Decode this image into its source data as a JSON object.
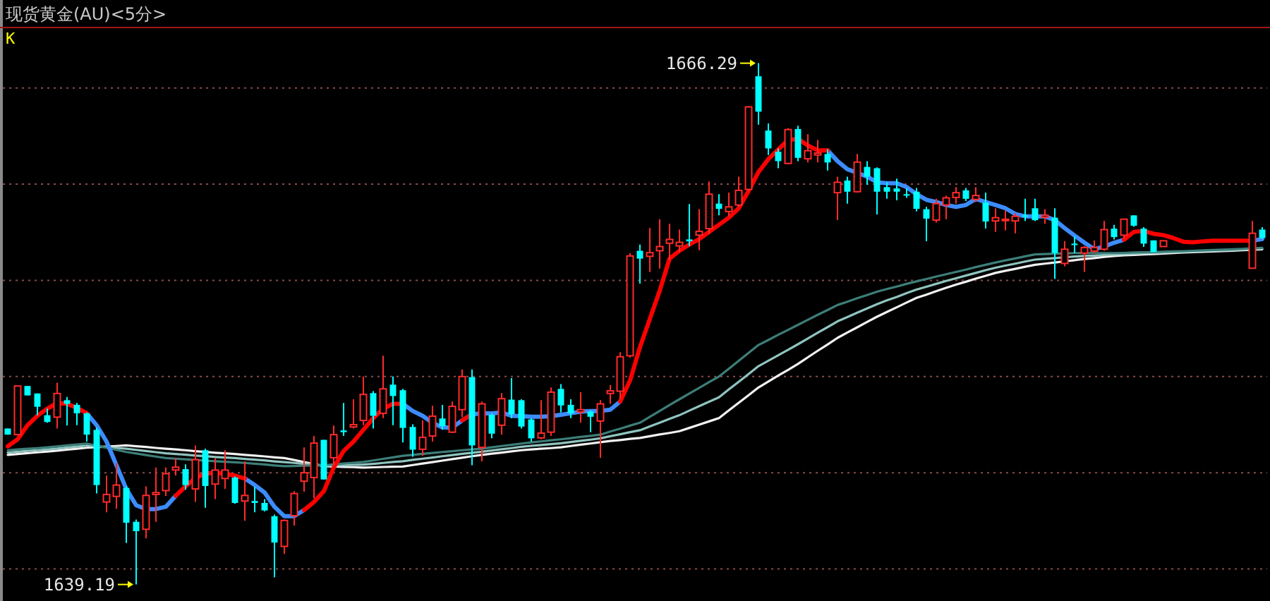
{
  "chart_data": {
    "type": "candlestick",
    "title": "现货黄金(AU)<5分>",
    "categories": [
      null,
      null,
      null,
      null,
      null,
      null,
      null,
      null,
      null,
      null,
      null,
      null,
      null,
      null,
      null,
      null,
      null,
      null,
      null,
      null,
      null,
      null,
      null,
      null,
      null,
      null,
      null,
      null,
      null,
      null,
      null,
      null,
      null,
      null,
      null,
      null,
      null,
      null,
      null,
      null,
      null,
      null,
      null,
      null,
      null,
      null,
      null,
      null,
      null,
      null,
      null,
      null,
      null,
      null,
      null,
      null,
      null,
      null,
      null,
      null,
      null,
      null,
      null,
      null,
      null,
      null,
      null,
      null,
      null,
      null,
      null,
      null,
      null,
      null,
      null,
      null,
      null,
      null,
      null,
      null,
      null,
      null,
      null,
      null,
      null,
      null,
      null,
      null,
      null,
      null,
      null,
      null,
      null,
      null,
      null,
      null,
      null,
      null,
      null,
      null,
      null,
      null,
      null,
      null,
      null,
      null,
      null,
      null,
      null,
      null,
      null,
      null,
      null,
      null,
      null,
      null,
      null,
      null,
      null,
      null,
      null,
      null,
      null,
      null,
      null,
      null,
      null,
      null
    ],
    "ohlc": [
      [
        1647.3,
        1647.3,
        1646.98,
        1646.98
      ],
      [
        1646.98,
        1649.51,
        1646.98,
        1649.51
      ],
      [
        1649.51,
        1649.51,
        1649.02,
        1649.02
      ],
      [
        1649.12,
        1649.12,
        1647.99,
        1648.43
      ],
      [
        1647.99,
        1648.33,
        1647.6,
        1647.64
      ],
      [
        1647.89,
        1649.68,
        1647.3,
        1649.12
      ],
      [
        1648.77,
        1648.94,
        1647.45,
        1648.58
      ],
      [
        1648.53,
        1648.63,
        1647.47,
        1648.09
      ],
      [
        1648.09,
        1648.13,
        1646.62,
        1646.98
      ],
      [
        1647.23,
        1647.35,
        1643.92,
        1644.36
      ],
      [
        1643.48,
        1644.85,
        1642.94,
        1643.87
      ],
      [
        1643.77,
        1645.51,
        1643.13,
        1644.36
      ],
      [
        1644.21,
        1644.29,
        1641.35,
        1642.4
      ],
      [
        1642.45,
        1642.57,
        1639.19,
        1641.96
      ],
      [
        1642.06,
        1644.29,
        1641.59,
        1643.82
      ],
      [
        1643.87,
        1645.27,
        1642.45,
        1643.97
      ],
      [
        1644.07,
        1645.27,
        1643.8,
        1644.95
      ],
      [
        1645.14,
        1645.76,
        1644.85,
        1645.29
      ],
      [
        1645.19,
        1645.44,
        1644.12,
        1644.36
      ],
      [
        1644.16,
        1646.42,
        1643.48,
        1645.68
      ],
      [
        1646.17,
        1646.25,
        1643.18,
        1644.31
      ],
      [
        1644.41,
        1645.76,
        1643.63,
        1645.14
      ],
      [
        1644.7,
        1646.17,
        1644.16,
        1645.14
      ],
      [
        1644.75,
        1644.8,
        1643.38,
        1643.43
      ],
      [
        1643.53,
        1645.59,
        1642.5,
        1643.82
      ],
      [
        1643.53,
        1644.26,
        1642.94,
        1643.43
      ],
      [
        1643.43,
        1643.63,
        1642.99,
        1643.04
      ],
      [
        1642.74,
        1642.82,
        1639.56,
        1641.37
      ],
      [
        1641.17,
        1642.57,
        1640.78,
        1642.52
      ],
      [
        1642.77,
        1644.04,
        1642.25,
        1643.92
      ],
      [
        1644.56,
        1646.32,
        1644.02,
        1645.0
      ],
      [
        1644.75,
        1646.91,
        1643.67,
        1646.54
      ],
      [
        1646.71,
        1646.71,
        1644.65,
        1644.65
      ],
      [
        1645.78,
        1647.45,
        1645.39,
        1646.98
      ],
      [
        1647.2,
        1648.63,
        1646.91,
        1647.11
      ],
      [
        1647.38,
        1648.82,
        1647.3,
        1647.5
      ],
      [
        1647.72,
        1650.0,
        1647.47,
        1649.07
      ],
      [
        1649.14,
        1649.24,
        1647.3,
        1647.96
      ],
      [
        1648.09,
        1651.08,
        1647.84,
        1649.36
      ],
      [
        1649.58,
        1650.0,
        1647.47,
        1648.99
      ],
      [
        1649.29,
        1649.36,
        1646.57,
        1647.33
      ],
      [
        1647.38,
        1647.52,
        1645.83,
        1646.2
      ],
      [
        1646.22,
        1647.72,
        1645.88,
        1646.84
      ],
      [
        1646.91,
        1648.48,
        1646.62,
        1647.94
      ],
      [
        1647.82,
        1648.53,
        1647.23,
        1647.42
      ],
      [
        1647.11,
        1648.7,
        1647.06,
        1648.45
      ],
      [
        1648.28,
        1650.37,
        1647.89,
        1650.0
      ],
      [
        1649.97,
        1650.37,
        1645.39,
        1646.42
      ],
      [
        1646.32,
        1648.7,
        1645.59,
        1648.58
      ],
      [
        1648.01,
        1648.09,
        1646.79,
        1647.03
      ],
      [
        1647.47,
        1649.14,
        1646.98,
        1648.85
      ],
      [
        1648.8,
        1649.92,
        1647.84,
        1648.04
      ],
      [
        1648.77,
        1648.82,
        1647.3,
        1647.4
      ],
      [
        1647.77,
        1647.84,
        1646.62,
        1646.79
      ],
      [
        1646.81,
        1648.77,
        1646.74,
        1647.06
      ],
      [
        1647.11,
        1649.43,
        1646.91,
        1649.19
      ],
      [
        1649.36,
        1649.61,
        1648.13,
        1648.5
      ],
      [
        1648.53,
        1648.82,
        1647.84,
        1648.09
      ],
      [
        1648.16,
        1649.19,
        1647.6,
        1648.28
      ],
      [
        1648.18,
        1648.23,
        1647.11,
        1647.91
      ],
      [
        1647.69,
        1648.77,
        1645.78,
        1648.58
      ],
      [
        1649.12,
        1649.56,
        1648.58,
        1649.26
      ],
      [
        1649.24,
        1651.27,
        1648.82,
        1651.03
      ],
      [
        1651.08,
        1656.42,
        1650.98,
        1656.27
      ],
      [
        1656.54,
        1656.86,
        1654.83,
        1656.13
      ],
      [
        1656.25,
        1657.72,
        1655.44,
        1656.44
      ],
      [
        1656.54,
        1658.18,
        1655.61,
        1656.76
      ],
      [
        1656.93,
        1657.94,
        1656.05,
        1657.13
      ],
      [
        1656.79,
        1657.64,
        1656.47,
        1656.98
      ],
      [
        1657.13,
        1658.97,
        1656.79,
        1657.03
      ],
      [
        1657.35,
        1658.7,
        1656.57,
        1657.55
      ],
      [
        1657.69,
        1660.14,
        1657.4,
        1659.48
      ],
      [
        1658.99,
        1659.48,
        1658.38,
        1658.72
      ],
      [
        1658.58,
        1659.56,
        1658.33,
        1658.82
      ],
      [
        1658.92,
        1660.39,
        1658.82,
        1659.68
      ],
      [
        1659.73,
        1664.07,
        1659.65,
        1664.02
      ],
      [
        1665.61,
        1666.29,
        1663.09,
        1663.77
      ],
      [
        1662.79,
        1663.16,
        1661.52,
        1661.86
      ],
      [
        1661.69,
        1661.86,
        1660.83,
        1661.2
      ],
      [
        1661.08,
        1662.91,
        1661.03,
        1662.84
      ],
      [
        1662.87,
        1663.04,
        1661.2,
        1661.37
      ],
      [
        1661.32,
        1662.6,
        1661.13,
        1661.74
      ],
      [
        1661.52,
        1662.3,
        1661.13,
        1661.62
      ],
      [
        1661.57,
        1661.81,
        1660.71,
        1661.13
      ],
      [
        1659.56,
        1660.39,
        1658.13,
        1660.1
      ],
      [
        1660.19,
        1660.39,
        1658.99,
        1659.61
      ],
      [
        1659.61,
        1661.57,
        1659.56,
        1661.15
      ],
      [
        1660.9,
        1661.2,
        1659.97,
        1660.39
      ],
      [
        1660.83,
        1660.88,
        1658.43,
        1659.61
      ],
      [
        1659.85,
        1660.1,
        1659.24,
        1659.61
      ],
      [
        1659.78,
        1660.29,
        1659.16,
        1659.61
      ],
      [
        1659.48,
        1659.78,
        1659.29,
        1659.43
      ],
      [
        1659.61,
        1659.8,
        1658.58,
        1658.72
      ],
      [
        1658.7,
        1658.82,
        1657.03,
        1658.21
      ],
      [
        1658.13,
        1659.24,
        1658.01,
        1658.99
      ],
      [
        1658.92,
        1659.41,
        1658.18,
        1659.29
      ],
      [
        1659.31,
        1659.85,
        1658.99,
        1659.56
      ],
      [
        1659.68,
        1659.8,
        1659.12,
        1659.24
      ],
      [
        1659.21,
        1659.85,
        1659.07,
        1659.41
      ],
      [
        1659.04,
        1659.56,
        1657.69,
        1658.06
      ],
      [
        1658.09,
        1658.75,
        1657.52,
        1658.26
      ],
      [
        1658.13,
        1658.63,
        1657.6,
        1658.18
      ],
      [
        1658.09,
        1658.5,
        1657.45,
        1658.33
      ],
      [
        1658.38,
        1659.24,
        1658.09,
        1658.33
      ],
      [
        1658.75,
        1659.24,
        1658.09,
        1658.13
      ],
      [
        1658.28,
        1658.7,
        1657.94,
        1658.38
      ],
      [
        1658.26,
        1658.75,
        1655.07,
        1656.42
      ],
      [
        1655.88,
        1657.03,
        1655.73,
        1656.62
      ],
      [
        1656.91,
        1657.28,
        1656.42,
        1656.86
      ],
      [
        1656.42,
        1656.79,
        1655.44,
        1656.71
      ],
      [
        1656.52,
        1657.08,
        1656.42,
        1656.71
      ],
      [
        1656.62,
        1658.09,
        1656.54,
        1657.64
      ],
      [
        1657.69,
        1657.89,
        1657.13,
        1657.25
      ],
      [
        1657.35,
        1658.18,
        1657.15,
        1658.18
      ],
      [
        1658.38,
        1658.38,
        1657.79,
        1657.84
      ],
      [
        1657.69,
        1657.77,
        1656.74,
        1656.91
      ],
      [
        1657.08,
        1657.08,
        1656.47,
        1656.47
      ],
      [
        1656.76,
        1657.06,
        1656.76,
        1657.06
      ],
      null,
      null,
      null,
      null,
      null,
      null,
      null,
      null,
      [
        1655.63,
        1658.09,
        1655.61,
        1657.45
      ],
      [
        1657.64,
        1657.77,
        1657.15,
        1657.2
      ]
    ],
    "series": [
      {
        "type": "line",
        "color": "#f2f2f2",
        "values": [
          1645.93,
          1645.97,
          1646.02,
          1646.06,
          1646.1,
          1646.15,
          1646.2,
          1646.25,
          1646.3,
          1646.33,
          1646.36,
          1646.39,
          1646.42,
          1646.38,
          1646.34,
          1646.29,
          1646.25,
          1646.21,
          1646.17,
          1646.12,
          1646.08,
          1646.04,
          1646.01,
          1645.97,
          1645.93,
          1645.89,
          1645.85,
          1645.8,
          1645.76,
          1645.66,
          1645.55,
          1645.45,
          1645.34,
          1645.32,
          1645.3,
          1645.29,
          1645.27,
          1645.28,
          1645.3,
          1645.31,
          1645.32,
          1645.4,
          1645.48,
          1645.55,
          1645.63,
          1645.71,
          1645.78,
          1645.86,
          1645.93,
          1645.99,
          1646.05,
          1646.11,
          1646.17,
          1646.21,
          1646.25,
          1646.28,
          1646.32,
          1646.39,
          1646.46,
          1646.52,
          1646.59,
          1646.65,
          1646.7,
          1646.76,
          1646.81,
          1646.9,
          1646.99,
          1647.07,
          1647.16,
          1647.33,
          1647.5,
          1647.67,
          1647.84,
          1648.24,
          1648.64,
          1649.03,
          1649.43,
          1649.74,
          1650.05,
          1650.35,
          1650.66,
          1651.0,
          1651.34,
          1651.67,
          1652.01,
          1652.29,
          1652.56,
          1652.84,
          1653.11,
          1653.36,
          1653.6,
          1653.85,
          1654.09,
          1654.26,
          1654.44,
          1654.61,
          1654.78,
          1654.93,
          1655.09,
          1655.24,
          1655.39,
          1655.5,
          1655.6,
          1655.71,
          1655.81,
          1655.87,
          1655.93,
          1655.99,
          1656.05,
          1656.11,
          1656.16,
          1656.22,
          1656.27,
          1656.3,
          1656.32,
          1656.35,
          1656.37,
          1656.4,
          1656.42,
          1656.45,
          1656.47,
          1656.49,
          1656.51,
          1656.52,
          1656.54,
          1656.57,
          1656.59,
          1656.62
        ]
      },
      {
        "type": "line",
        "color": "#8fc4bf",
        "values": [
          1646.05,
          1646.09,
          1646.14,
          1646.17,
          1646.21,
          1646.26,
          1646.31,
          1646.36,
          1646.41,
          1646.37,
          1646.33,
          1646.29,
          1646.25,
          1646.19,
          1646.13,
          1646.07,
          1646.01,
          1645.97,
          1645.94,
          1645.89,
          1645.86,
          1645.82,
          1645.79,
          1645.76,
          1645.72,
          1645.68,
          1645.64,
          1645.59,
          1645.55,
          1645.51,
          1645.46,
          1645.42,
          1645.37,
          1645.38,
          1645.39,
          1645.41,
          1645.42,
          1645.46,
          1645.51,
          1645.56,
          1645.6,
          1645.67,
          1645.73,
          1645.79,
          1645.86,
          1645.92,
          1645.98,
          1646.04,
          1646.09,
          1646.16,
          1646.22,
          1646.28,
          1646.35,
          1646.4,
          1646.44,
          1646.49,
          1646.53,
          1646.6,
          1646.66,
          1646.72,
          1646.79,
          1646.9,
          1647.0,
          1647.11,
          1647.21,
          1647.41,
          1647.6,
          1647.8,
          1647.99,
          1648.23,
          1648.46,
          1648.69,
          1648.92,
          1649.33,
          1649.73,
          1650.13,
          1650.54,
          1650.82,
          1651.11,
          1651.39,
          1651.68,
          1651.98,
          1652.28,
          1652.57,
          1652.87,
          1653.09,
          1653.32,
          1653.54,
          1653.76,
          1653.96,
          1654.14,
          1654.34,
          1654.52,
          1654.67,
          1654.82,
          1654.97,
          1655.11,
          1655.25,
          1655.39,
          1655.53,
          1655.66,
          1655.77,
          1655.87,
          1655.98,
          1656.08,
          1656.12,
          1656.16,
          1656.2,
          1656.24,
          1656.27,
          1656.29,
          1656.32,
          1656.35,
          1656.37,
          1656.39,
          1656.41,
          1656.42,
          1656.45,
          1656.47,
          1656.49,
          1656.51,
          1656.53,
          1656.55,
          1656.56,
          1656.58,
          1656.61,
          1656.63,
          1656.66
        ]
      },
      {
        "type": "line",
        "color": "#3d7e79",
        "values": [
          1646.17,
          1646.21,
          1646.25,
          1646.28,
          1646.32,
          1646.37,
          1646.42,
          1646.47,
          1646.52,
          1646.41,
          1646.3,
          1646.19,
          1646.08,
          1646.0,
          1645.92,
          1645.84,
          1645.76,
          1645.73,
          1645.7,
          1645.66,
          1645.63,
          1645.6,
          1645.57,
          1645.54,
          1645.51,
          1645.47,
          1645.43,
          1645.38,
          1645.34,
          1645.35,
          1645.37,
          1645.38,
          1645.39,
          1645.43,
          1645.48,
          1645.52,
          1645.56,
          1645.64,
          1645.72,
          1645.8,
          1645.88,
          1645.93,
          1645.98,
          1646.03,
          1646.08,
          1646.12,
          1646.17,
          1646.21,
          1646.25,
          1646.32,
          1646.39,
          1646.45,
          1646.52,
          1646.58,
          1646.63,
          1646.69,
          1646.74,
          1646.8,
          1646.86,
          1646.92,
          1646.98,
          1647.14,
          1647.29,
          1647.45,
          1647.6,
          1647.91,
          1648.21,
          1648.52,
          1648.82,
          1649.12,
          1649.41,
          1649.71,
          1650.0,
          1650.41,
          1650.82,
          1651.23,
          1651.64,
          1651.9,
          1652.17,
          1652.43,
          1652.69,
          1652.95,
          1653.21,
          1653.46,
          1653.72,
          1653.89,
          1654.07,
          1654.24,
          1654.41,
          1654.55,
          1654.68,
          1654.82,
          1654.95,
          1655.07,
          1655.2,
          1655.32,
          1655.44,
          1655.56,
          1655.69,
          1655.81,
          1655.93,
          1656.04,
          1656.14,
          1656.25,
          1656.35,
          1656.37,
          1656.39,
          1656.4,
          1656.42,
          1656.42,
          1656.42,
          1656.42,
          1656.42,
          1656.43,
          1656.45,
          1656.46,
          1656.47,
          1656.49,
          1656.51,
          1656.52,
          1656.54,
          1656.56,
          1656.58,
          1656.6,
          1656.62,
          1656.64,
          1656.67,
          1656.69
        ]
      },
      {
        "type": "line",
        "color": "#3c8cff",
        "values": [
          null,
          null,
          null,
          null,
          null,
          null,
          null,
          null,
          1648.09,
          1647.47,
          1646.62,
          1645.39,
          1644.16,
          1643.31,
          1643.11,
          1643.11,
          1643.23,
          1643.8,
          null,
          null,
          null,
          null,
          null,
          null,
          1644.7,
          1644.36,
          1643.97,
          1643.23,
          1642.74,
          1642.74,
          1643.06,
          null,
          null,
          null,
          null,
          null,
          null,
          null,
          null,
          null,
          1648.58,
          1648.21,
          1647.96,
          1647.6,
          1647.35,
          1647.35,
          1647.72,
          1648.04,
          1648.09,
          1648.09,
          1648.13,
          1647.96,
          1647.94,
          1647.91,
          1647.91,
          1647.94,
          1648.01,
          1648.09,
          1648.18,
          1648.21,
          1648.21,
          1648.28,
          1648.7,
          null,
          null,
          null,
          null,
          null,
          null,
          null,
          null,
          null,
          null,
          null,
          null,
          null,
          null,
          null,
          null,
          null,
          null,
          null,
          null,
          1661.76,
          1661.2,
          1660.78,
          1660.59,
          1660.39,
          1660.1,
          1660.05,
          1660.05,
          1659.85,
          1659.48,
          1659.19,
          1659.07,
          1658.92,
          1658.82,
          1658.92,
          1659.24,
          1659.07,
          1658.92,
          1658.75,
          1658.45,
          1658.33,
          1658.33,
          1658.33,
          1658.13,
          1657.72,
          1657.33,
          1656.96,
          1656.62,
          1656.76,
          1656.96,
          1657.11,
          null,
          null,
          null,
          null,
          null,
          null,
          null,
          null,
          null,
          null,
          null,
          null,
          1657.06,
          1657.15
        ]
      },
      {
        "type": "line",
        "color": "#ff0000",
        "values": [
          1646.37,
          1646.74,
          1647.47,
          1647.96,
          1648.33,
          1648.63,
          1648.58,
          1648.38,
          1648.09,
          null,
          null,
          null,
          null,
          null,
          null,
          null,
          null,
          1643.8,
          1644.29,
          1644.73,
          1644.95,
          1645.0,
          1644.95,
          1644.85,
          1644.7,
          null,
          null,
          null,
          null,
          null,
          1643.06,
          1643.48,
          1644.04,
          1645.27,
          1646.13,
          1646.62,
          1647.23,
          1647.84,
          1648.33,
          1648.58,
          1648.58,
          null,
          null,
          null,
          null,
          null,
          1647.72,
          1648.04,
          null,
          null,
          null,
          null,
          null,
          null,
          null,
          null,
          null,
          null,
          null,
          null,
          null,
          null,
          1648.7,
          1649.8,
          1651.52,
          1652.99,
          1654.46,
          1656.13,
          1656.54,
          1656.86,
          1657.15,
          1657.52,
          1657.89,
          1658.26,
          1658.75,
          1659.65,
          1660.63,
          1661.3,
          1661.81,
          1662.3,
          1662.35,
          1662.01,
          1661.76,
          1661.76,
          null,
          null,
          null,
          null,
          null,
          null,
          null,
          null,
          null,
          null,
          null,
          null,
          null,
          null,
          null,
          null,
          null,
          null,
          null,
          null,
          null,
          null,
          null,
          null,
          null,
          null,
          null,
          null,
          null,
          1657.11,
          1657.52,
          1657.57,
          1657.42,
          1657.35,
          1657.2,
          1657.01,
          1656.98,
          1657.03,
          1657.06,
          1657.06,
          1657.06,
          1657.06,
          1657.06,
          null
        ]
      }
    ],
    "annotations": [
      "K",
      "1666.29",
      "1639.19"
    ],
    "yticks": [
      {
        "value": 1640,
        "label": null
      },
      {
        "value": 1645,
        "label": null
      },
      {
        "value": 1650,
        "label": null
      },
      {
        "value": 1655,
        "label": null
      },
      {
        "value": 1660,
        "label": null
      },
      {
        "value": 1665,
        "label": null
      }
    ],
    "grid": "y"
  }
}
